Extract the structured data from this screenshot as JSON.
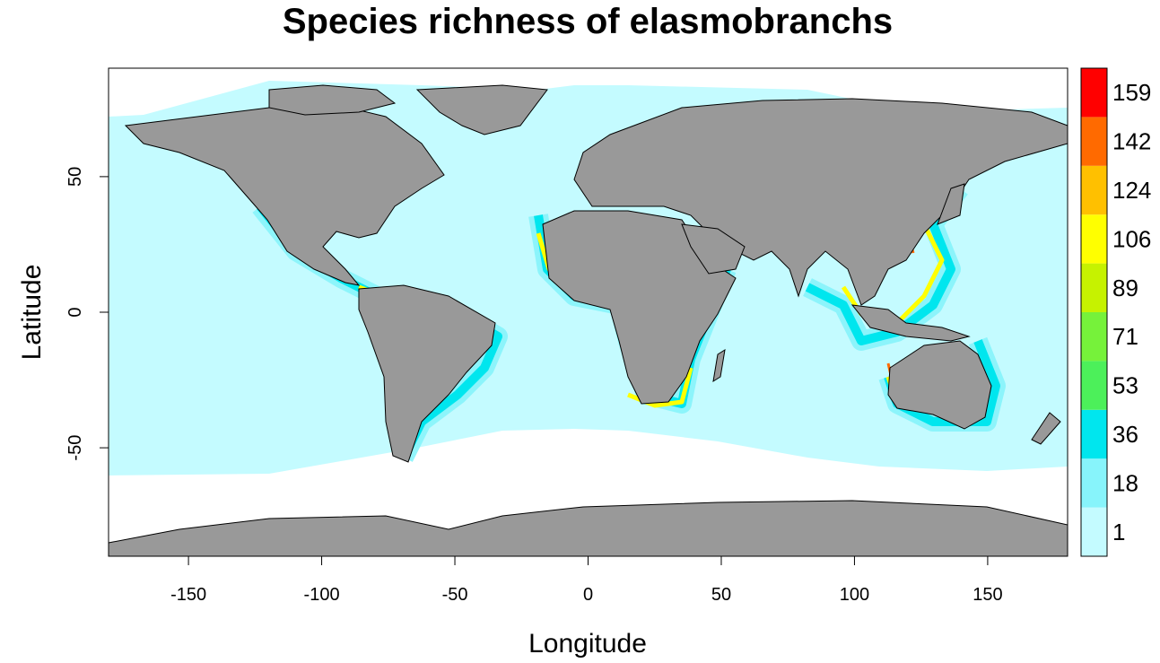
{
  "title": "Species richness of elasmobranchs",
  "x_axis": {
    "label": "Longitude",
    "ticks": [
      -150,
      -100,
      -50,
      0,
      50,
      100,
      150
    ],
    "range": [
      -180,
      180
    ]
  },
  "y_axis": {
    "label": "Latitude",
    "ticks": [
      50,
      0,
      -50
    ],
    "range": [
      -90,
      90
    ]
  },
  "legend": {
    "placement": "right",
    "bins": [
      {
        "label": "1",
        "color": "#c4fbff"
      },
      {
        "label": "18",
        "color": "#87f4fb"
      },
      {
        "label": "36",
        "color": "#00e6ee"
      },
      {
        "label": "53",
        "color": "#4cf05a"
      },
      {
        "label": "71",
        "color": "#76f23a"
      },
      {
        "label": "89",
        "color": "#c6f200"
      },
      {
        "label": "106",
        "color": "#ffff00"
      },
      {
        "label": "124",
        "color": "#ffc000"
      },
      {
        "label": "142",
        "color": "#ff6a00"
      },
      {
        "label": "159",
        "color": "#ff0000"
      }
    ]
  },
  "colors": {
    "ocean": "#c4fbff",
    "land": "#999999",
    "no_data": "#ffffff",
    "border": "#000000"
  }
}
